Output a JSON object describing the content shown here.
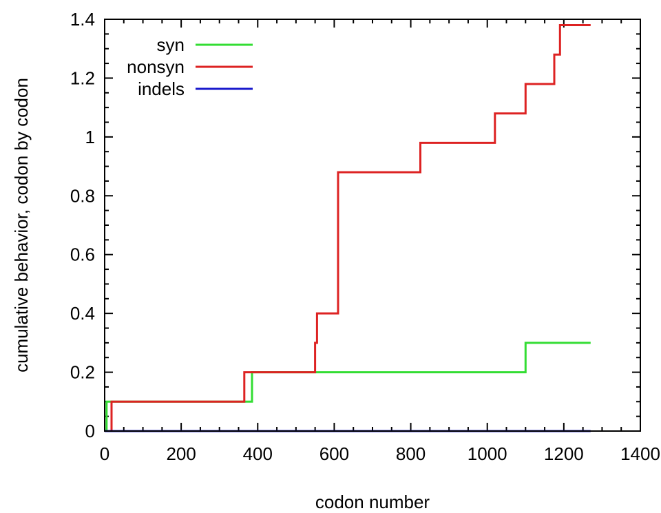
{
  "chart_data": {
    "type": "line",
    "step": true,
    "title": "",
    "xlabel": "codon number",
    "ylabel": "cumulative behavior, codon by codon",
    "xlim": [
      0,
      1400
    ],
    "ylim": [
      0,
      1.4
    ],
    "x_ticks": [
      0,
      200,
      400,
      600,
      800,
      1000,
      1200,
      1400
    ],
    "y_ticks": [
      0,
      0.2,
      0.4,
      0.6,
      0.8,
      1,
      1.2,
      1.4
    ],
    "x_tick_labels": [
      "0",
      "200",
      "400",
      "600",
      "800",
      "1000",
      "1200",
      "1400"
    ],
    "y_tick_labels": [
      "0",
      "0.2",
      "0.4",
      "0.6",
      "0.8",
      "1",
      "1.2",
      "1.4"
    ],
    "x_minor_step": 50,
    "y_minor_step": 0.05,
    "grid": false,
    "legend_position": "top-left",
    "series": [
      {
        "name": "syn",
        "color": "#33dd33",
        "x": [
          5,
          5,
          385,
          385,
          1100,
          1100,
          1270
        ],
        "y": [
          0,
          0.1,
          0.1,
          0.2,
          0.2,
          0.3,
          0.3
        ]
      },
      {
        "name": "nonsyn",
        "color": "#dd2222",
        "x": [
          18,
          18,
          365,
          365,
          550,
          550,
          555,
          555,
          610,
          610,
          825,
          825,
          1020,
          1020,
          1100,
          1100,
          1175,
          1175,
          1190,
          1190,
          1270
        ],
        "y": [
          0,
          0.1,
          0.1,
          0.2,
          0.2,
          0.3,
          0.3,
          0.4,
          0.4,
          0.88,
          0.88,
          0.98,
          0.98,
          1.08,
          1.08,
          1.18,
          1.18,
          1.28,
          1.28,
          1.38,
          1.38
        ]
      },
      {
        "name": "indels",
        "color": "#1a1acc",
        "x": [
          0,
          1270
        ],
        "y": [
          0,
          0
        ]
      }
    ]
  }
}
